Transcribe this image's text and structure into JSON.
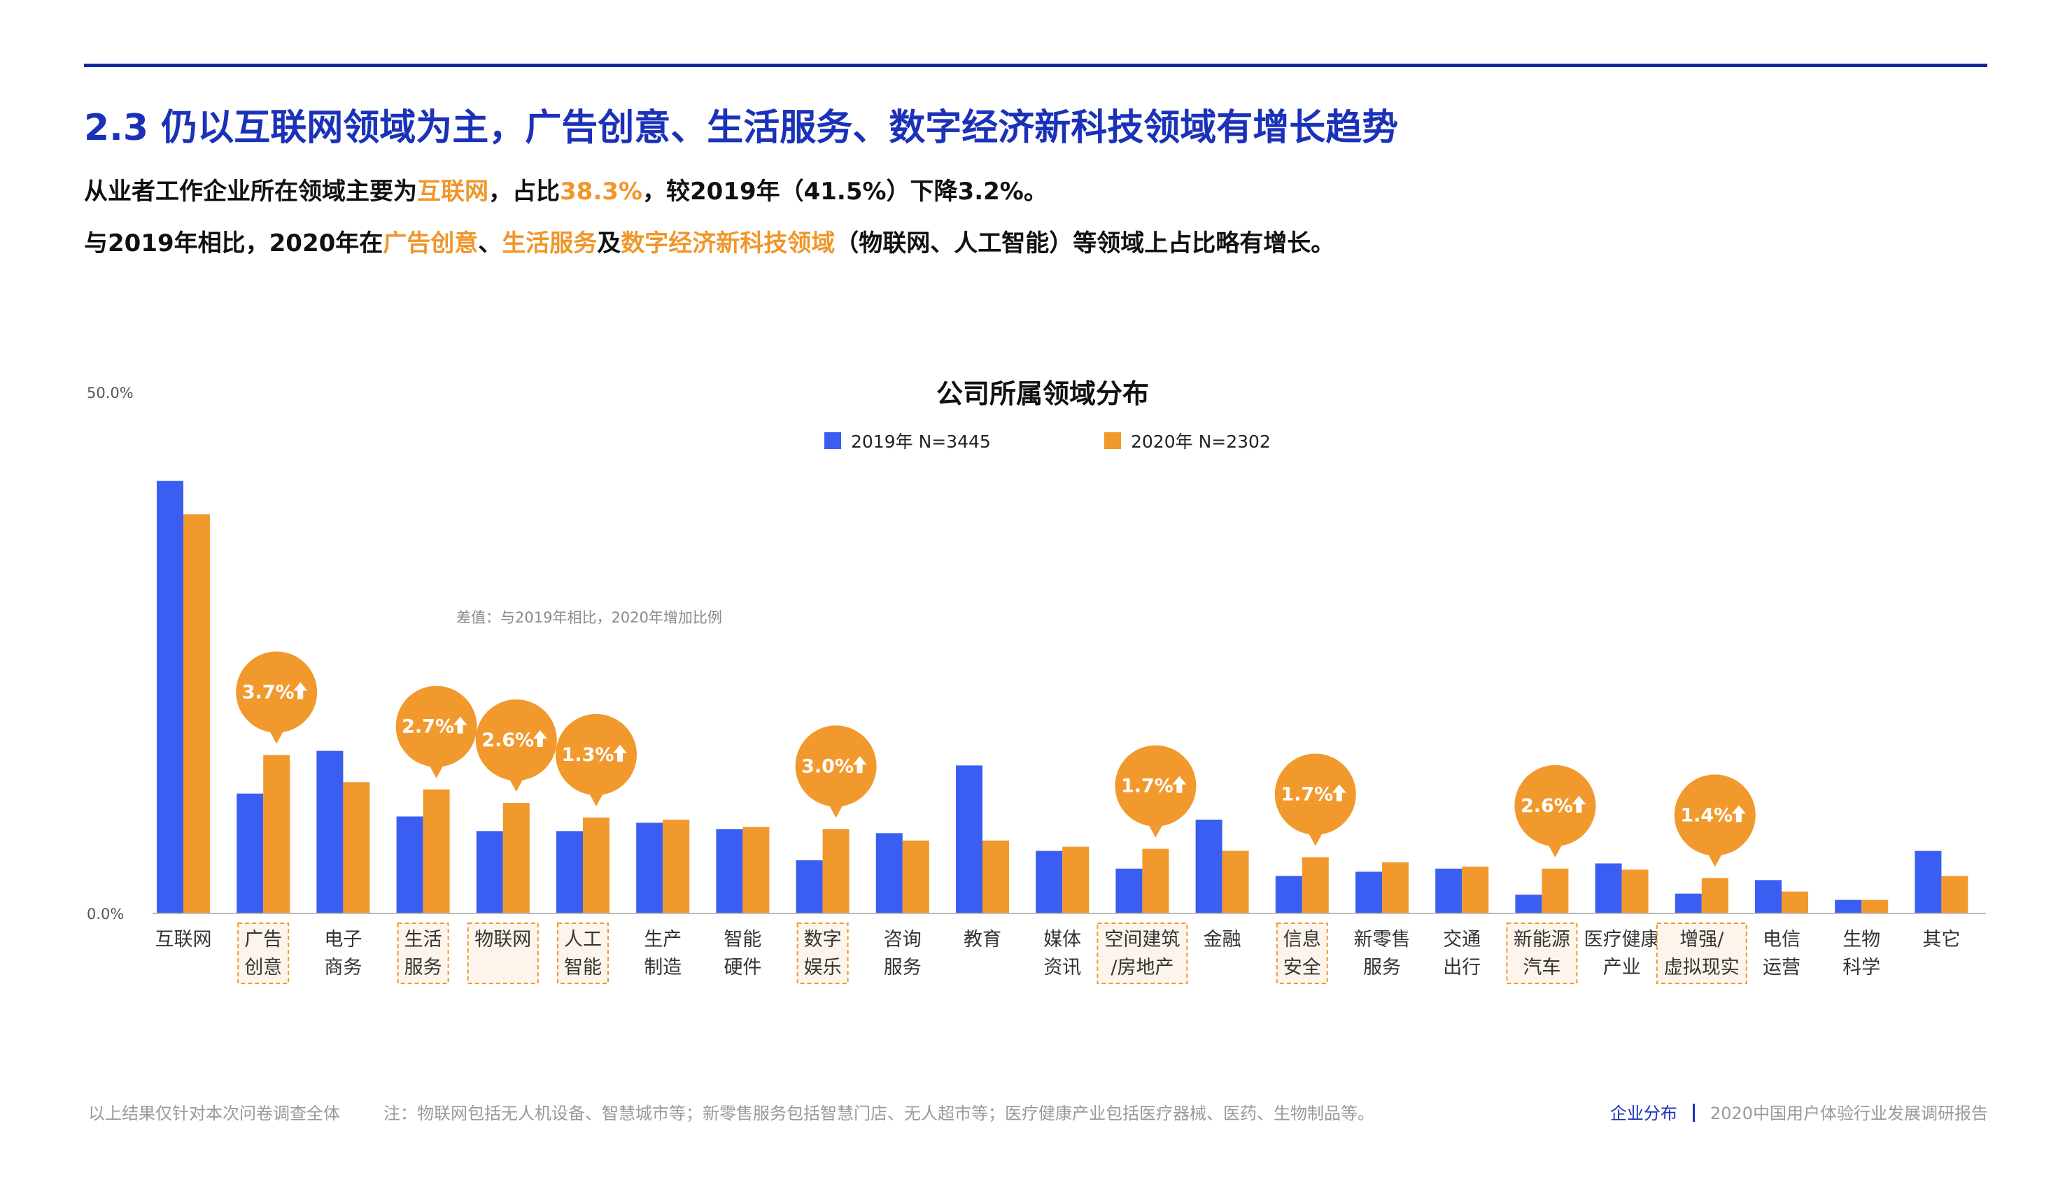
{
  "header": {
    "title": "2.3 仍以互联网领域为主，广告创意、生活服务、数字经济新科技领域有增长趋势",
    "line1": [
      {
        "t": "从业者工作企业所在领域主要为",
        "hl": false
      },
      {
        "t": "互联网",
        "hl": true
      },
      {
        "t": "，占比",
        "hl": false
      },
      {
        "t": "38.3%",
        "hl": true
      },
      {
        "t": "，较2019年（41.5%）下降3.2%。",
        "hl": false
      }
    ],
    "line2": [
      {
        "t": "与2019年相比，2020年在",
        "hl": false
      },
      {
        "t": "广告创意",
        "hl": true
      },
      {
        "t": "、",
        "hl": false
      },
      {
        "t": "生活服务",
        "hl": true
      },
      {
        "t": "及",
        "hl": false
      },
      {
        "t": "数字经济新科技领域",
        "hl": true
      },
      {
        "t": "（物联网、人工智能）等领域上占比略有增长。",
        "hl": false
      }
    ]
  },
  "chart_data": {
    "type": "bar",
    "title": "公司所属领域分布",
    "ylim": [
      0,
      50
    ],
    "yticks": [
      "0.0%",
      "50.0%"
    ],
    "annotation_note": "差值：与2019年相比，2020年增加比例",
    "legend_position": "top-center",
    "colors": {
      "s2019": "#3b5ef2",
      "s2020": "#f2992e",
      "bubble": "#f2992e",
      "axis": "#bbbbbb"
    },
    "categories": [
      {
        "line1": "互联网",
        "line2": "",
        "highlight": false,
        "delta": ""
      },
      {
        "line1": "广告",
        "line2": "创意",
        "highlight": true,
        "delta": "3.7%"
      },
      {
        "line1": "电子",
        "line2": "商务",
        "highlight": false,
        "delta": ""
      },
      {
        "line1": "生活",
        "line2": "服务",
        "highlight": true,
        "delta": "2.7%"
      },
      {
        "line1": "物联网",
        "line2": "",
        "highlight": true,
        "delta": "2.6%"
      },
      {
        "line1": "人工",
        "line2": "智能",
        "highlight": true,
        "delta": "1.3%"
      },
      {
        "line1": "生产",
        "line2": "制造",
        "highlight": false,
        "delta": ""
      },
      {
        "line1": "智能",
        "line2": "硬件",
        "highlight": false,
        "delta": ""
      },
      {
        "line1": "数字",
        "line2": "娱乐",
        "highlight": true,
        "delta": "3.0%"
      },
      {
        "line1": "咨询",
        "line2": "服务",
        "highlight": false,
        "delta": ""
      },
      {
        "line1": "教育",
        "line2": "",
        "highlight": false,
        "delta": ""
      },
      {
        "line1": "媒体",
        "line2": "资讯",
        "highlight": false,
        "delta": ""
      },
      {
        "line1": "空间建筑",
        "line2": "/房地产",
        "highlight": true,
        "delta": "1.7%"
      },
      {
        "line1": "金融",
        "line2": "",
        "highlight": false,
        "delta": ""
      },
      {
        "line1": "信息",
        "line2": "安全",
        "highlight": true,
        "delta": "1.7%"
      },
      {
        "line1": "新零售",
        "line2": "服务",
        "highlight": false,
        "delta": ""
      },
      {
        "line1": "交通",
        "line2": "出行",
        "highlight": false,
        "delta": ""
      },
      {
        "line1": "新能源",
        "line2": "汽车",
        "highlight": true,
        "delta": "2.6%"
      },
      {
        "line1": "医疗健康",
        "line2": "产业",
        "highlight": false,
        "delta": ""
      },
      {
        "line1": "增强/",
        "line2": "虚拟现实",
        "highlight": true,
        "delta": "1.4%"
      },
      {
        "line1": "电信",
        "line2": "运营",
        "highlight": false,
        "delta": ""
      },
      {
        "line1": "生物",
        "line2": "科学",
        "highlight": false,
        "delta": ""
      },
      {
        "line1": "其它",
        "line2": "",
        "highlight": false,
        "delta": ""
      }
    ],
    "series": [
      {
        "name": "2019年 N=3445",
        "values": [
          41.5,
          11.5,
          15.6,
          9.3,
          7.9,
          7.9,
          8.7,
          8.1,
          5.1,
          7.7,
          14.2,
          6.0,
          4.3,
          9.0,
          3.6,
          4.0,
          4.3,
          1.8,
          4.8,
          1.9,
          3.2,
          1.3,
          6.0
        ]
      },
      {
        "name": "2020年 N=2302",
        "values": [
          38.3,
          15.2,
          12.6,
          11.9,
          10.6,
          9.2,
          9.0,
          8.3,
          8.1,
          7.0,
          7.0,
          6.4,
          6.2,
          6.0,
          5.4,
          4.9,
          4.5,
          4.3,
          4.2,
          3.4,
          2.1,
          1.3,
          3.6
        ]
      }
    ]
  },
  "footer": {
    "left": "以上结果仅针对本次问卷调查全体",
    "note": "注：物联网包括无人机设备、智慧城市等；新零售服务包括智慧门店、无人超市等；医疗健康产业包括医疗器械、医药、生物制品等。",
    "section": "企业分布",
    "report": "2020中国用户体验行业发展调研报告"
  }
}
